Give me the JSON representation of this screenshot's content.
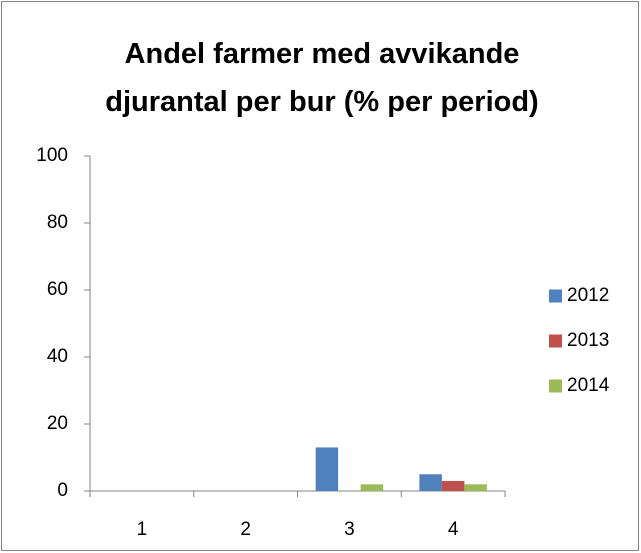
{
  "chart_data": {
    "type": "bar",
    "title": "Andel farmer med avvikande djurantal per bur (% per period)",
    "categories": [
      "1",
      "2",
      "3",
      "4"
    ],
    "series": [
      {
        "name": "2012",
        "color": "#4f81bd",
        "values": [
          0,
          0,
          13,
          5
        ]
      },
      {
        "name": "2013",
        "color": "#c0504d",
        "values": [
          0,
          0,
          0,
          3
        ]
      },
      {
        "name": "2014",
        "color": "#9bbb59",
        "values": [
          0,
          0,
          2,
          2
        ]
      }
    ],
    "ylim": [
      0,
      100
    ],
    "yticks": [
      0,
      20,
      40,
      60,
      80,
      100
    ],
    "grid": false,
    "legend": "right"
  }
}
